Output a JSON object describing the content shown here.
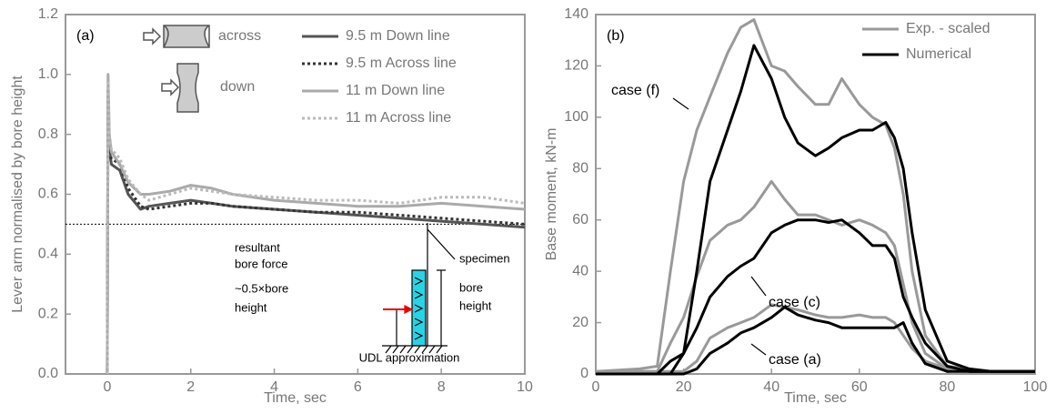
{
  "chart_data": [
    {
      "type": "line",
      "panel_label": "(a)",
      "xlabel": "Time, sec",
      "ylabel": "Lever arm normalised by bore height",
      "xlim": [
        -1,
        10
      ],
      "ylim": [
        0,
        1.2
      ],
      "xticks": [
        0,
        2,
        4,
        6,
        8,
        10
      ],
      "yticks": [
        {
          "value": 0,
          "label": "0.0"
        },
        0.2,
        0.4,
        0.6,
        0.8,
        {
          "value": 1,
          "label": "1.0"
        },
        1.2
      ],
      "reference_line": 0.5,
      "legend": "upper right",
      "x": [
        0,
        0.02,
        0.05,
        0.1,
        0.3,
        0.5,
        0.8,
        1,
        1.5,
        2,
        2.5,
        3,
        4,
        5,
        6,
        7,
        8,
        9,
        10
      ],
      "series": [
        {
          "name": "9.5 m Down line",
          "color": "#555555",
          "dash": "solid",
          "values": [
            0,
            0.95,
            0.75,
            0.7,
            0.68,
            0.6,
            0.55,
            0.56,
            0.57,
            0.58,
            0.57,
            0.56,
            0.55,
            0.54,
            0.53,
            0.52,
            0.51,
            0.5,
            0.49
          ]
        },
        {
          "name": "9.5 m Across line",
          "color": "#333333",
          "dash": "dotted",
          "values": [
            0,
            0.9,
            0.73,
            0.72,
            0.7,
            0.62,
            0.56,
            0.55,
            0.56,
            0.57,
            0.57,
            0.56,
            0.55,
            0.54,
            0.54,
            0.53,
            0.52,
            0.51,
            0.5
          ]
        },
        {
          "name": "11 m Down line",
          "color": "#aaaaaa",
          "dash": "solid",
          "values": [
            0,
            1.0,
            0.8,
            0.74,
            0.7,
            0.64,
            0.6,
            0.6,
            0.61,
            0.63,
            0.62,
            0.6,
            0.58,
            0.57,
            0.56,
            0.56,
            0.57,
            0.56,
            0.55
          ]
        },
        {
          "name": "11 m Across line",
          "color": "#bbbbbb",
          "dash": "dotted",
          "values": [
            0,
            0.98,
            0.78,
            0.75,
            0.72,
            0.65,
            0.6,
            0.58,
            0.6,
            0.62,
            0.61,
            0.6,
            0.59,
            0.58,
            0.58,
            0.57,
            0.59,
            0.59,
            0.57
          ]
        }
      ],
      "annotations": [
        "across",
        "down",
        "resultant",
        "bore force",
        "specimen",
        "~0.5×bore",
        "height",
        "bore",
        "height",
        "UDL approximation"
      ]
    },
    {
      "type": "line",
      "panel_label": "(b)",
      "xlabel": "Time, sec",
      "ylabel": "Base moment, kN-m",
      "xlim": [
        0,
        100
      ],
      "ylim": [
        0,
        140
      ],
      "xticks": [
        0,
        20,
        40,
        60,
        80,
        100
      ],
      "yticks": [
        0,
        20,
        40,
        60,
        80,
        100,
        120,
        140
      ],
      "legend": "upper right",
      "x": [
        0,
        10,
        14,
        17,
        20,
        23,
        26,
        30,
        33,
        36,
        40,
        43,
        46,
        50,
        53,
        56,
        60,
        63,
        66,
        68,
        70,
        72,
        75,
        80,
        85,
        90,
        100
      ],
      "series": [
        {
          "name": "Exp. - scaled",
          "color": "#999999",
          "values": [
            [
              1,
              2,
              3,
              40,
              75,
              95,
              108,
              125,
              135,
              138,
              120,
              118,
              112,
              105,
              105,
              115,
              105,
              100,
              97,
              88,
              70,
              40,
              15,
              3,
              2,
              1,
              1
            ],
            [
              1,
              1,
              1,
              12,
              22,
              38,
              52,
              58,
              60,
              65,
              75,
              68,
              62,
              62,
              60,
              58,
              60,
              58,
              55,
              50,
              35,
              20,
              8,
              2,
              1,
              1,
              1
            ],
            [
              1,
              1,
              1,
              1,
              1,
              5,
              14,
              18,
              20,
              22,
              27,
              26,
              25,
              23,
              22,
              22,
              23,
              22,
              22,
              20,
              15,
              10,
              5,
              2,
              1,
              1,
              1
            ]
          ]
        },
        {
          "name": "Numerical",
          "color": "#000000",
          "values": [
            [
              0,
              0,
              0,
              0,
              8,
              40,
              75,
              95,
              110,
              128,
              115,
              100,
              90,
              85,
              88,
              92,
              95,
              95,
              98,
              92,
              80,
              55,
              25,
              5,
              2,
              1,
              1
            ],
            [
              0,
              0,
              0,
              5,
              8,
              18,
              30,
              38,
              42,
              45,
              55,
              58,
              60,
              60,
              59,
              60,
              55,
              50,
              50,
              45,
              30,
              22,
              12,
              3,
              1,
              1,
              1
            ],
            [
              0,
              0,
              0,
              0,
              0,
              2,
              8,
              12,
              16,
              18,
              22,
              26,
              23,
              21,
              20,
              18,
              18,
              18,
              18,
              18,
              20,
              12,
              4,
              1,
              1,
              1,
              1
            ]
          ]
        }
      ],
      "annotations": [
        "case (f)",
        "case (c)",
        "case (a)"
      ]
    }
  ]
}
